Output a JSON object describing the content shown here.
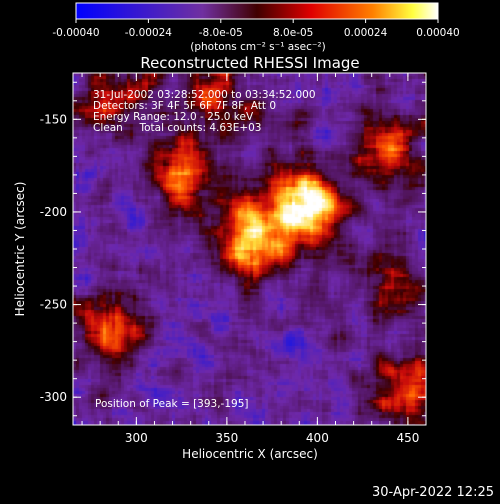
{
  "colorbar": {
    "ticks": [
      "-0.00040",
      "-0.00024",
      "-8.0e-05",
      "8.0e-05",
      "0.00024",
      "0.00040"
    ],
    "unit_label": "(photons cm⁻² s⁻¹ asec⁻²)"
  },
  "plot": {
    "title": "Reconstructed RHESSI Image",
    "xlabel": "Heliocentric X (arcsec)",
    "ylabel": "Heliocentric Y (arcsec)",
    "xticks": [
      "300",
      "350",
      "400",
      "450"
    ],
    "yticks": [
      "-150",
      "-200",
      "-250",
      "-300"
    ],
    "annotations": [
      "31-Jul-2002 03:28:52.000 to 03:34:52.000",
      "Detectors: 3F 4F 5F 6F 7F 8F, Att 0",
      "Energy Range: 12.0 - 25.0 keV",
      "Clean     Total counts: 4.63E+03"
    ],
    "peak_text": "Position of Peak = [393,-195]"
  },
  "footer": {
    "timestamp": "30-Apr-2022 12:25"
  },
  "chart_data": {
    "type": "heatmap",
    "title": "Reconstructed RHESSI Image",
    "xlabel": "Heliocentric X (arcsec)",
    "ylabel": "Heliocentric Y (arcsec)",
    "xlim": [
      265,
      460
    ],
    "ylim": [
      -315,
      -125
    ],
    "colorbar_range": [
      -0.0004,
      0.0004
    ],
    "colormap": [
      "#0000ff",
      "#7020a0",
      "#500000",
      "#ff1000",
      "#ff8000",
      "#ffff60",
      "#ffffff"
    ],
    "peak": [
      393,
      -195
    ],
    "sources": [
      {
        "x": 393,
        "y": -195,
        "intensity": 1.0
      },
      {
        "x": 363,
        "y": -214,
        "intensity": 0.85
      },
      {
        "x": 325,
        "y": -180,
        "intensity": 0.55
      },
      {
        "x": 440,
        "y": -165,
        "intensity": 0.55
      },
      {
        "x": 285,
        "y": -265,
        "intensity": 0.6
      },
      {
        "x": 450,
        "y": -295,
        "intensity": 0.6
      },
      {
        "x": 440,
        "y": -235,
        "intensity": 0.45
      },
      {
        "x": 285,
        "y": -140,
        "intensity": 0.4
      },
      {
        "x": 340,
        "y": -140,
        "intensity": 0.45
      }
    ]
  }
}
